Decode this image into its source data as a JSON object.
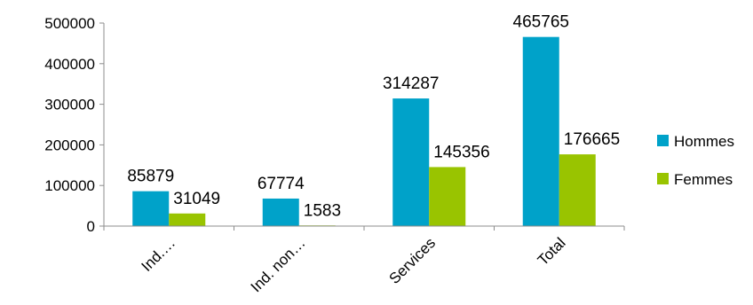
{
  "chart_data": {
    "type": "bar",
    "categories": [
      "Ind.…",
      "Ind. non…",
      "Services",
      "Total"
    ],
    "series": [
      {
        "name": "Hommes",
        "color": "#00A2C9",
        "values": [
          85879,
          67774,
          314287,
          465765
        ]
      },
      {
        "name": "Femmes",
        "color": "#99C400",
        "values": [
          31049,
          1583,
          145356,
          176665
        ]
      }
    ],
    "data_labels": [
      [
        "85879",
        "67774",
        "314287",
        "465765"
      ],
      [
        "31049",
        "1583",
        "145356",
        "176665"
      ]
    ],
    "yticks": [
      "0",
      "100000",
      "200000",
      "300000",
      "400000",
      "500000"
    ],
    "ylim": [
      0,
      500000
    ],
    "title": "",
    "xlabel": "",
    "ylabel": "",
    "grid": false,
    "legend": "right"
  }
}
